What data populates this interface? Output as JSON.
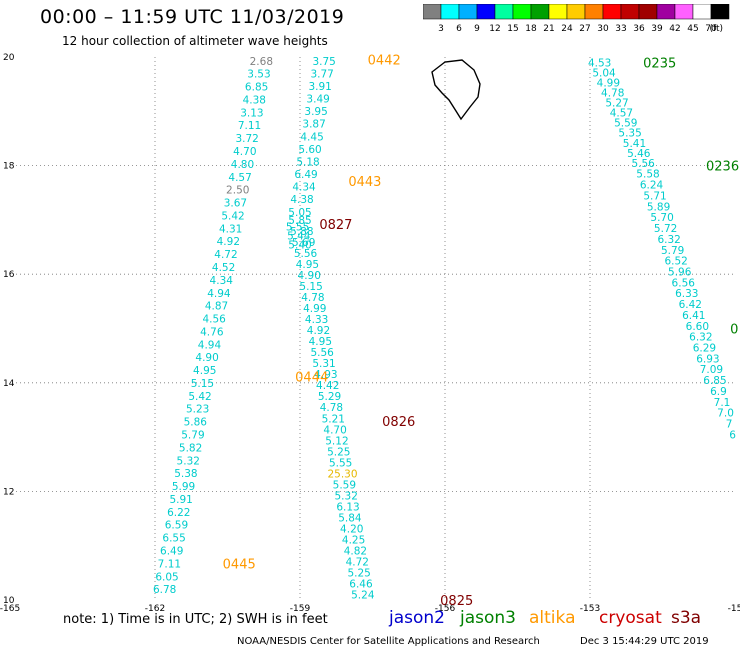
{
  "header": {
    "title": "00:00 – 11:59 UTC 11/03/2019",
    "subtitle": "12 hour collection of altimeter wave heights"
  },
  "color_scale": {
    "colors": [
      "#808080",
      "#00ffff",
      "#00b0ff",
      "#0000ff",
      "#00ffa0",
      "#00ff00",
      "#00a000",
      "#ffff00",
      "#ffcc00",
      "#ff8000",
      "#ff0000",
      "#c00000",
      "#a00000",
      "#a000a0",
      "#ff60ff",
      "#ffffff",
      "#000000"
    ],
    "labels": [
      "3",
      "6",
      "9",
      "12",
      "15",
      "18",
      "21",
      "24",
      "27",
      "30",
      "33",
      "36",
      "39",
      "42",
      "45",
      "70"
    ],
    "unit": "(ft)"
  },
  "chart_data": {
    "type": "scatter",
    "x_ticks": [
      "-165",
      "-162",
      "-159",
      "-156",
      "-153",
      "-15"
    ],
    "y_ticks": [
      "20",
      "18",
      "16",
      "14",
      "12",
      "10"
    ],
    "xlim": [
      -165,
      -150
    ],
    "ylim": [
      10,
      20
    ],
    "grid": true,
    "tracks": [
      {
        "satellite": "jason3",
        "time_label": "0235",
        "time_lon": -151.9,
        "time_lat": 19.9,
        "values": [
          "4.53",
          "5.04",
          "4.99",
          "4.78",
          "5.27",
          "4.57",
          "5.59",
          "5.35",
          "5.41",
          "5.46",
          "5.56"
        ],
        "start": [
          -152.8,
          19.9
        ],
        "end": [
          -151.9,
          18.05
        ]
      },
      {
        "satellite": "jason3",
        "time_label": "0236",
        "time_lon": -150.6,
        "time_lat": 18.0,
        "values": [
          "5.58",
          "6.24",
          "5.71",
          "5.89",
          "5.70",
          "5.72",
          "6.32",
          "5.79",
          "6.52",
          "5.96",
          "6.56",
          "6.33",
          "6.42",
          "6.41",
          "6.60",
          "6.32",
          "6.29",
          "6.93",
          "7.09",
          "6.85",
          "6.9",
          "7.1",
          "7.0",
          "7",
          "6"
        ],
        "start": [
          -151.8,
          17.85
        ],
        "end": [
          -150.05,
          13.05
        ]
      },
      {
        "satellite": "altika",
        "time_label": "0442",
        "time_lon": -157.6,
        "time_lat": 19.95,
        "values": [
          "3.75",
          "3.77",
          "3.91",
          "3.49",
          "3.95",
          "3.87",
          "4.45",
          "5.60",
          "5.18",
          "6.49",
          "4.34",
          "4.38",
          "5.05"
        ],
        "start": [
          -158.5,
          19.93
        ],
        "end": [
          -159.0,
          17.15
        ]
      },
      {
        "satellite": "altika",
        "time_label": "0443",
        "time_lon": -158.0,
        "time_lat": 17.72,
        "values": [],
        "start": [
          -158.5,
          17.72
        ],
        "end": [
          -158.5,
          17.72
        ]
      },
      {
        "satellite": "altika",
        "time_label": "0444",
        "time_lon": -159.1,
        "time_lat": 14.12,
        "values": [
          "5.85",
          "5.88",
          "5.69",
          "5.56",
          "4.95",
          "4.90",
          "5.15",
          "4.78",
          "4.99",
          "4.33",
          "4.92",
          "4.95",
          "5.56",
          "5.31",
          "4.93",
          "4.42",
          "5.29",
          "4.78",
          "5.21",
          "4.70",
          "5.12",
          "5.25",
          "5.55",
          "25.30",
          "5.59",
          "5.32",
          "6.13",
          "5.84",
          "4.20",
          "4.25",
          "4.82",
          "4.72",
          "5.25",
          "6.46",
          "5.24"
        ],
        "start": [
          -159.0,
          17.0
        ],
        "end": [
          -157.7,
          10.1
        ]
      },
      {
        "satellite": "altika",
        "time_label": "0445",
        "time_lon": -160.6,
        "time_lat": 10.67,
        "values": [
          "2.68",
          "3.53",
          "6.85",
          "4.38",
          "3.13",
          "7.11",
          "3.72",
          "4.70",
          "4.80",
          "4.57",
          "2.50",
          "3.67",
          "5.42",
          "4.31",
          "4.92",
          "4.72",
          "4.52",
          "4.34",
          "4.94",
          "4.87",
          "4.56",
          "4.76",
          "4.94",
          "4.90",
          "4.95",
          "5.15",
          "5.42",
          "5.23",
          "5.86",
          "5.79",
          "5.82",
          "5.32",
          "5.38",
          "5.99",
          "5.91",
          "6.22",
          "6.59",
          "6.55",
          "6.49",
          "7.11",
          "6.05",
          "6.78"
        ],
        "start": [
          -159.8,
          19.93
        ],
        "end": [
          -161.8,
          10.2
        ]
      },
      {
        "satellite": "cryosat",
        "time_label": "0827",
        "time_lon": -158.6,
        "time_lat": 16.92,
        "values": [
          "5.55",
          "5.44",
          "5.40"
        ],
        "start": [
          -159.05,
          16.88
        ],
        "end": [
          -159.0,
          16.55
        ]
      },
      {
        "satellite": "cryosat",
        "time_label": "0826",
        "time_lon": -157.3,
        "time_lat": 13.3,
        "values": [],
        "start": [
          -157.3,
          13.3
        ],
        "end": [
          -157.3,
          13.3
        ]
      },
      {
        "satellite": "cryosat",
        "time_label": "0825",
        "time_lon": -156.1,
        "time_lat": 10.0,
        "values": [],
        "start": [
          -156.1,
          10.0
        ],
        "end": [
          -156.1,
          10.0
        ]
      }
    ],
    "partial_label": {
      "text": "0",
      "lon": -150.1,
      "lat": 15.0,
      "satellite": "jason3"
    }
  },
  "satellite_colors": {
    "jason2": "#0000cc",
    "jason3": "#008000",
    "altika": "#ff9900",
    "cryosat": "#cc0000",
    "s3a": "#800000",
    "value_default": "#00cccc",
    "value_gray": "#808080",
    "value_yellow": "#e6b800",
    "time_dark": "#800000"
  },
  "legend": {
    "note": "note:  1) Time is in UTC;  2) SWH is in feet",
    "satellites": [
      "jason2",
      "jason3",
      "altika",
      "cryosat",
      "s3a"
    ]
  },
  "footer": {
    "credit": "NOAA/NESDIS Center for Satellite Applications and Research",
    "timestamp": "Dec  3 15:44:29 UTC 2019"
  }
}
